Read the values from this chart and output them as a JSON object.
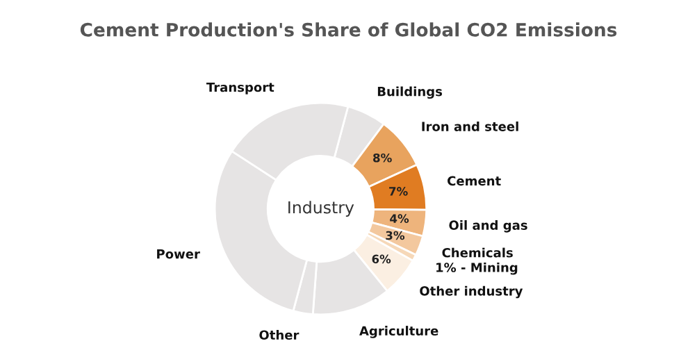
{
  "chart_data": {
    "type": "donut",
    "title": "Cement Production's Share of Global CO2 Emissions",
    "categories": [
      "Buildings",
      "Iron and steel",
      "Cement",
      "Oil and gas",
      "Chemicals",
      "1% - Mining",
      "Other industry",
      "Agriculture",
      "Other",
      "Power",
      "Transport"
    ],
    "values": [
      6,
      8,
      7,
      4,
      3,
      1,
      6,
      12,
      3,
      30,
      20
    ],
    "value_labels": [
      null,
      "8%",
      "7%",
      "4%",
      "3%",
      null,
      "6%",
      null,
      null,
      null,
      null
    ],
    "colors": [
      "#e6e4e4",
      "#e8a35e",
      "#e07c22",
      "#eeb47c",
      "#f3c89e",
      "#f6d8b8",
      "#fbefe2",
      "#e6e4e4",
      "#e6e4e4",
      "#e6e4e4",
      "#e6e4e4"
    ],
    "annotations": [
      "Industry"
    ],
    "legend": false
  }
}
